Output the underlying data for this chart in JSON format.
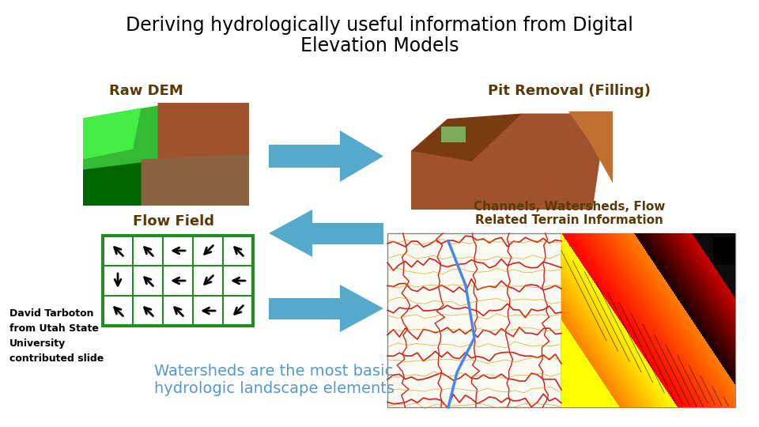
{
  "title_line1": "Deriving hydrologically useful information from Digital",
  "title_line2": "Elevation Models",
  "title_fontsize": 17,
  "title_color": "#000000",
  "label_raw_dem": "Raw DEM",
  "label_flow_field": "Flow Field",
  "label_pit_removal": "Pit Removal (Filling)",
  "label_channels": "Channels, Watersheds, Flow\nRelated Terrain Information",
  "label_watersheds": "Watersheds are the most basic\nhydrologic landscape elements",
  "label_david": "David Tarboton\nfrom Utah State\nUniversity\ncontributed slide",
  "label_color_brown": "#5B3A0A",
  "label_watersheds_color": "#5599CC",
  "label_david_color": "#000000",
  "bg_color": "#ffffff",
  "arrow_color": "#55AACC",
  "grid_color": "#228B22",
  "arrow_directions": [
    [
      225,
      225,
      270,
      315,
      225
    ],
    [
      0,
      225,
      270,
      315,
      270
    ],
    [
      225,
      225,
      225,
      270,
      315
    ]
  ]
}
